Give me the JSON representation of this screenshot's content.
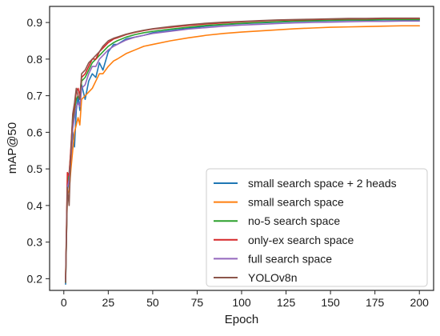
{
  "chart_data": {
    "type": "line",
    "title": "",
    "xlabel": "Epoch",
    "ylabel": "mAP@50",
    "xlim": [
      -8,
      208
    ],
    "ylim": [
      0.168,
      0.944
    ],
    "xticks": [
      0,
      25,
      50,
      75,
      100,
      125,
      150,
      175,
      200
    ],
    "yticks": [
      0.2,
      0.3,
      0.4,
      0.5,
      0.6,
      0.7,
      0.8,
      0.9
    ],
    "grid": false,
    "legend_position": "lower-right",
    "series": [
      {
        "name": "small search space + 2 heads",
        "color": "#1f77b4",
        "values": [
          [
            1,
            0.185
          ],
          [
            2,
            0.44
          ],
          [
            3,
            0.47
          ],
          [
            4,
            0.52
          ],
          [
            5,
            0.6
          ],
          [
            6,
            0.56
          ],
          [
            7,
            0.66
          ],
          [
            8,
            0.7
          ],
          [
            9,
            0.66
          ],
          [
            10,
            0.73
          ],
          [
            12,
            0.69
          ],
          [
            14,
            0.74
          ],
          [
            16,
            0.76
          ],
          [
            18,
            0.75
          ],
          [
            20,
            0.79
          ],
          [
            22,
            0.77
          ],
          [
            25,
            0.82
          ],
          [
            28,
            0.84
          ],
          [
            30,
            0.84
          ],
          [
            35,
            0.855
          ],
          [
            40,
            0.86
          ],
          [
            45,
            0.865
          ],
          [
            50,
            0.872
          ],
          [
            60,
            0.878
          ],
          [
            70,
            0.884
          ],
          [
            80,
            0.89
          ],
          [
            90,
            0.894
          ],
          [
            100,
            0.897
          ],
          [
            110,
            0.899
          ],
          [
            120,
            0.901
          ],
          [
            130,
            0.903
          ],
          [
            140,
            0.904
          ],
          [
            150,
            0.905
          ],
          [
            160,
            0.906
          ],
          [
            170,
            0.906
          ],
          [
            180,
            0.907
          ],
          [
            190,
            0.907
          ],
          [
            200,
            0.907
          ]
        ]
      },
      {
        "name": "small search space",
        "color": "#ff7f0e",
        "values": [
          [
            1,
            0.2
          ],
          [
            2,
            0.43
          ],
          [
            3,
            0.44
          ],
          [
            4,
            0.5
          ],
          [
            5,
            0.55
          ],
          [
            6,
            0.6
          ],
          [
            7,
            0.62
          ],
          [
            8,
            0.64
          ],
          [
            9,
            0.62
          ],
          [
            10,
            0.69
          ],
          [
            12,
            0.7
          ],
          [
            14,
            0.71
          ],
          [
            16,
            0.72
          ],
          [
            18,
            0.74
          ],
          [
            20,
            0.76
          ],
          [
            22,
            0.76
          ],
          [
            25,
            0.78
          ],
          [
            28,
            0.795
          ],
          [
            30,
            0.8
          ],
          [
            35,
            0.815
          ],
          [
            40,
            0.825
          ],
          [
            45,
            0.835
          ],
          [
            50,
            0.84
          ],
          [
            60,
            0.85
          ],
          [
            70,
            0.858
          ],
          [
            80,
            0.865
          ],
          [
            90,
            0.87
          ],
          [
            100,
            0.874
          ],
          [
            110,
            0.877
          ],
          [
            120,
            0.88
          ],
          [
            130,
            0.883
          ],
          [
            140,
            0.885
          ],
          [
            150,
            0.887
          ],
          [
            160,
            0.888
          ],
          [
            170,
            0.889
          ],
          [
            180,
            0.89
          ],
          [
            190,
            0.891
          ],
          [
            200,
            0.891
          ]
        ]
      },
      {
        "name": "no-5 search space",
        "color": "#2ca02c",
        "values": [
          [
            1,
            0.19
          ],
          [
            2,
            0.46
          ],
          [
            3,
            0.49
          ],
          [
            4,
            0.55
          ],
          [
            5,
            0.62
          ],
          [
            6,
            0.66
          ],
          [
            7,
            0.69
          ],
          [
            8,
            0.7
          ],
          [
            9,
            0.69
          ],
          [
            10,
            0.74
          ],
          [
            12,
            0.75
          ],
          [
            14,
            0.77
          ],
          [
            16,
            0.79
          ],
          [
            18,
            0.8
          ],
          [
            20,
            0.81
          ],
          [
            22,
            0.82
          ],
          [
            25,
            0.835
          ],
          [
            28,
            0.845
          ],
          [
            30,
            0.85
          ],
          [
            35,
            0.86
          ],
          [
            40,
            0.867
          ],
          [
            45,
            0.872
          ],
          [
            50,
            0.876
          ],
          [
            60,
            0.882
          ],
          [
            70,
            0.887
          ],
          [
            80,
            0.892
          ],
          [
            90,
            0.895
          ],
          [
            100,
            0.898
          ],
          [
            110,
            0.9
          ],
          [
            120,
            0.902
          ],
          [
            130,
            0.904
          ],
          [
            140,
            0.905
          ],
          [
            150,
            0.906
          ],
          [
            160,
            0.907
          ],
          [
            170,
            0.907
          ],
          [
            180,
            0.908
          ],
          [
            190,
            0.908
          ],
          [
            200,
            0.908
          ]
        ]
      },
      {
        "name": "only-ex search space",
        "color": "#d62728",
        "values": [
          [
            1,
            0.2
          ],
          [
            2,
            0.49
          ],
          [
            3,
            0.48
          ],
          [
            4,
            0.56
          ],
          [
            5,
            0.64
          ],
          [
            6,
            0.67
          ],
          [
            7,
            0.71
          ],
          [
            8,
            0.72
          ],
          [
            9,
            0.7
          ],
          [
            10,
            0.75
          ],
          [
            12,
            0.76
          ],
          [
            14,
            0.78
          ],
          [
            16,
            0.8
          ],
          [
            18,
            0.8
          ],
          [
            20,
            0.82
          ],
          [
            22,
            0.83
          ],
          [
            25,
            0.845
          ],
          [
            28,
            0.855
          ],
          [
            30,
            0.858
          ],
          [
            35,
            0.867
          ],
          [
            40,
            0.873
          ],
          [
            45,
            0.878
          ],
          [
            50,
            0.882
          ],
          [
            60,
            0.887
          ],
          [
            70,
            0.892
          ],
          [
            80,
            0.896
          ],
          [
            90,
            0.899
          ],
          [
            100,
            0.902
          ],
          [
            110,
            0.904
          ],
          [
            120,
            0.906
          ],
          [
            130,
            0.907
          ],
          [
            140,
            0.908
          ],
          [
            150,
            0.909
          ],
          [
            160,
            0.91
          ],
          [
            170,
            0.91
          ],
          [
            180,
            0.911
          ],
          [
            190,
            0.911
          ],
          [
            200,
            0.911
          ]
        ]
      },
      {
        "name": "full search space",
        "color": "#9467bd",
        "values": [
          [
            1,
            0.195
          ],
          [
            2,
            0.45
          ],
          [
            3,
            0.47
          ],
          [
            4,
            0.53
          ],
          [
            5,
            0.61
          ],
          [
            6,
            0.64
          ],
          [
            7,
            0.67
          ],
          [
            8,
            0.68
          ],
          [
            9,
            0.67
          ],
          [
            10,
            0.72
          ],
          [
            12,
            0.73
          ],
          [
            14,
            0.76
          ],
          [
            16,
            0.78
          ],
          [
            18,
            0.78
          ],
          [
            20,
            0.8
          ],
          [
            22,
            0.81
          ],
          [
            25,
            0.825
          ],
          [
            28,
            0.835
          ],
          [
            30,
            0.84
          ],
          [
            35,
            0.852
          ],
          [
            40,
            0.86
          ],
          [
            45,
            0.865
          ],
          [
            50,
            0.87
          ],
          [
            60,
            0.876
          ],
          [
            70,
            0.882
          ],
          [
            80,
            0.886
          ],
          [
            90,
            0.89
          ],
          [
            100,
            0.893
          ],
          [
            110,
            0.895
          ],
          [
            120,
            0.897
          ],
          [
            130,
            0.899
          ],
          [
            140,
            0.9
          ],
          [
            150,
            0.901
          ],
          [
            160,
            0.902
          ],
          [
            170,
            0.903
          ],
          [
            180,
            0.903
          ],
          [
            190,
            0.904
          ],
          [
            200,
            0.904
          ]
        ]
      },
      {
        "name": "YOLOv8n",
        "color": "#8c564b",
        "values": [
          [
            1,
            0.19
          ],
          [
            2,
            0.45
          ],
          [
            3,
            0.4
          ],
          [
            4,
            0.55
          ],
          [
            5,
            0.65
          ],
          [
            6,
            0.68
          ],
          [
            7,
            0.72
          ],
          [
            8,
            0.7
          ],
          [
            9,
            0.69
          ],
          [
            10,
            0.76
          ],
          [
            12,
            0.77
          ],
          [
            14,
            0.79
          ],
          [
            16,
            0.8
          ],
          [
            18,
            0.81
          ],
          [
            20,
            0.82
          ],
          [
            22,
            0.835
          ],
          [
            25,
            0.85
          ],
          [
            28,
            0.857
          ],
          [
            30,
            0.86
          ],
          [
            35,
            0.868
          ],
          [
            40,
            0.874
          ],
          [
            45,
            0.879
          ],
          [
            50,
            0.883
          ],
          [
            60,
            0.889
          ],
          [
            70,
            0.894
          ],
          [
            80,
            0.898
          ],
          [
            90,
            0.901
          ],
          [
            100,
            0.903
          ],
          [
            110,
            0.905
          ],
          [
            120,
            0.907
          ],
          [
            130,
            0.908
          ],
          [
            140,
            0.909
          ],
          [
            150,
            0.91
          ],
          [
            160,
            0.911
          ],
          [
            170,
            0.911
          ],
          [
            180,
            0.912
          ],
          [
            190,
            0.912
          ],
          [
            200,
            0.912
          ]
        ]
      }
    ]
  }
}
